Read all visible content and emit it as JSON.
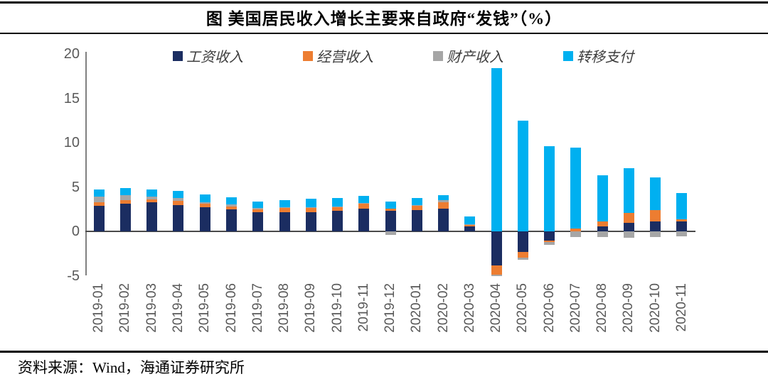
{
  "header": {
    "title": "图 美国居民收入增长主要来自政府“发钱”（%）"
  },
  "footer": {
    "source": "资料来源：Wind，海通证券研究所"
  },
  "colors": {
    "wage_navy": "#1B2D61",
    "operating_orange": "#ED7D31",
    "property_gray": "#A6A6A6",
    "transfer_blue": "#00B0F0",
    "axis_text": "#595959",
    "rule_black": "#000000"
  },
  "chart_data": {
    "type": "bar",
    "stacked": true,
    "title": "图 美国居民收入增长主要来自政府“发钱”（%）",
    "xlabel": "",
    "ylabel": "",
    "ylim": [
      -5,
      20
    ],
    "yticks": [
      20,
      15,
      10,
      5,
      0,
      -5
    ],
    "grid": false,
    "legend_position": "top",
    "categories": [
      "2019-01",
      "2019-02",
      "2019-03",
      "2019-04",
      "2019-05",
      "2019-06",
      "2019-07",
      "2019-08",
      "2019-09",
      "2019-10",
      "2019-11",
      "2019-12",
      "2020-01",
      "2020-02",
      "2020-03",
      "2020-04",
      "2020-05",
      "2020-06",
      "2020-07",
      "2020-08",
      "2020-09",
      "2020-10",
      "2020-11"
    ],
    "series": [
      {
        "name": "工资收入",
        "color": "#1B2D61",
        "values": [
          2.9,
          3.1,
          3.3,
          3.0,
          2.75,
          2.5,
          2.2,
          2.2,
          2.2,
          2.35,
          2.55,
          2.3,
          2.4,
          2.6,
          0.55,
          -3.85,
          -2.3,
          -1.0,
          0,
          0.55,
          1.0,
          1.15,
          1.1
        ]
      },
      {
        "name": "经营收入",
        "color": "#ED7D31",
        "values": [
          0.4,
          0.4,
          0.3,
          0.45,
          0.35,
          0.3,
          0.3,
          0.45,
          0.45,
          0.35,
          0.55,
          0.25,
          0.45,
          0.7,
          0.15,
          -1.0,
          -0.65,
          -0.2,
          0.3,
          0.55,
          1.1,
          1.25,
          0.25
        ]
      },
      {
        "name": "财产收入",
        "color": "#A6A6A6",
        "values": [
          0.65,
          0.55,
          0.3,
          0.35,
          0.2,
          0.25,
          0.15,
          0.1,
          0.1,
          0.1,
          0.1,
          -0.4,
          0.1,
          0.2,
          0.1,
          -0.15,
          -0.25,
          -0.3,
          -0.6,
          -0.6,
          -0.7,
          -0.65,
          -0.55
        ]
      },
      {
        "name": "转移支付",
        "color": "#00B0F0",
        "values": [
          0.8,
          0.8,
          0.85,
          0.75,
          0.9,
          0.8,
          0.75,
          0.8,
          0.95,
          0.95,
          0.8,
          0.8,
          0.8,
          0.6,
          0.9,
          18.4,
          12.5,
          9.6,
          9.15,
          5.2,
          5.0,
          3.65,
          2.95
        ]
      }
    ]
  }
}
